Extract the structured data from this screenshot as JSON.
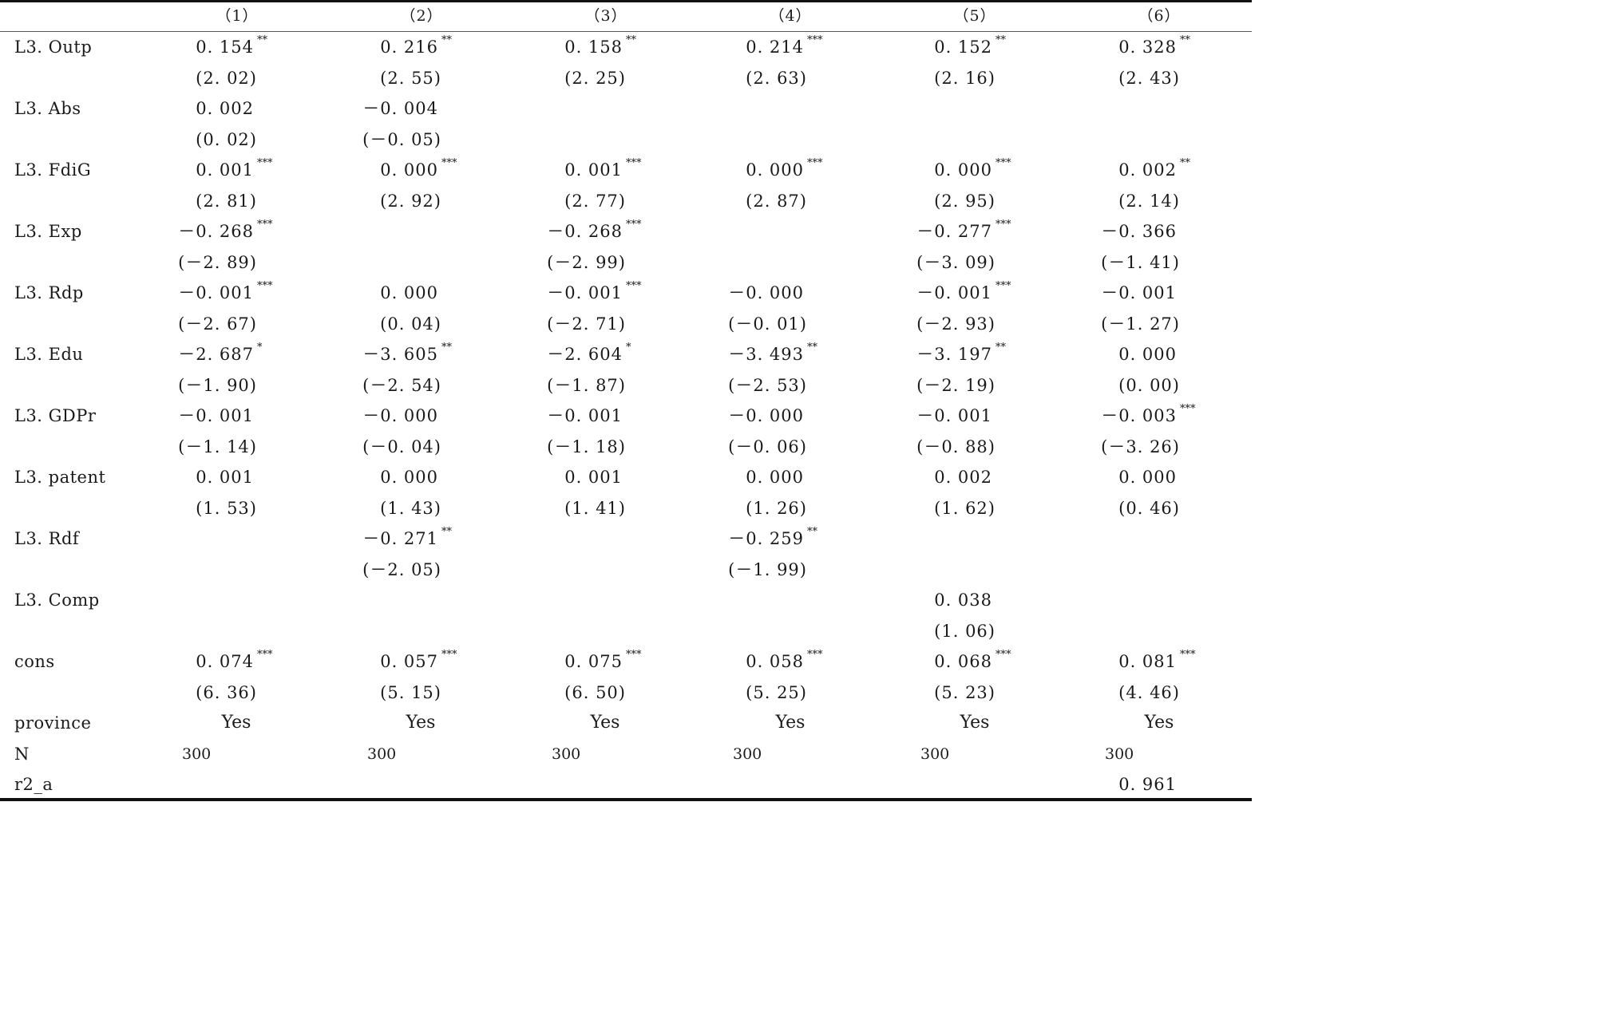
{
  "columns": [
    "（1）",
    "（2）",
    "（3）",
    "（4）",
    "（5）",
    "（6）"
  ],
  "rows": [
    {
      "label": "L3. Outp",
      "coef": [
        [
          "0. 154",
          "**"
        ],
        [
          "0. 216",
          "**"
        ],
        [
          "0. 158",
          "**"
        ],
        [
          "0. 214",
          "***"
        ],
        [
          "0. 152",
          "**"
        ],
        [
          "0. 328",
          "**"
        ]
      ],
      "t": [
        "(2. 02)",
        "(2. 55)",
        "(2. 25)",
        "(2. 63)",
        "(2. 16)",
        "(2. 43)"
      ]
    },
    {
      "label": "L3. Abs",
      "coef": [
        [
          "0. 002",
          ""
        ],
        [
          "－0. 004",
          ""
        ],
        [
          "",
          ""
        ],
        [
          "",
          ""
        ],
        [
          "",
          ""
        ],
        [
          "",
          ""
        ]
      ],
      "t": [
        "(0. 02)",
        "(－0. 05)",
        "",
        "",
        "",
        ""
      ]
    },
    {
      "label": "L3. FdiG",
      "coef": [
        [
          "0. 001",
          "***"
        ],
        [
          "0. 000",
          "***"
        ],
        [
          "0. 001",
          "***"
        ],
        [
          "0. 000",
          "***"
        ],
        [
          "0. 000",
          "***"
        ],
        [
          "0. 002",
          "**"
        ]
      ],
      "t": [
        "(2. 81)",
        "(2. 92)",
        "(2. 77)",
        "(2. 87)",
        "(2. 95)",
        "(2. 14)"
      ]
    },
    {
      "label": "L3. Exp",
      "coef": [
        [
          "－0. 268",
          "***"
        ],
        [
          "",
          ""
        ],
        [
          "－0. 268",
          "***"
        ],
        [
          "",
          ""
        ],
        [
          "－0. 277",
          "***"
        ],
        [
          "－0. 366",
          ""
        ]
      ],
      "t": [
        "(－2. 89)",
        "",
        "(－2. 99)",
        "",
        "(－3. 09)",
        "(－1. 41)"
      ]
    },
    {
      "label": "L3. Rdp",
      "coef": [
        [
          "－0. 001",
          "***"
        ],
        [
          "0. 000",
          ""
        ],
        [
          "－0. 001",
          "***"
        ],
        [
          "－0. 000",
          ""
        ],
        [
          "－0. 001",
          "***"
        ],
        [
          "－0. 001",
          ""
        ]
      ],
      "t": [
        "(－2. 67)",
        "(0. 04)",
        "(－2. 71)",
        "(－0. 01)",
        "(－2. 93)",
        "(－1. 27)"
      ]
    },
    {
      "label": "L3. Edu",
      "coef": [
        [
          "－2. 687",
          "*"
        ],
        [
          "－3. 605",
          "**"
        ],
        [
          "－2. 604",
          "*"
        ],
        [
          "－3. 493",
          "**"
        ],
        [
          "－3. 197",
          "**"
        ],
        [
          "0. 000",
          ""
        ]
      ],
      "t": [
        "(－1. 90)",
        "(－2. 54)",
        "(－1. 87)",
        "(－2. 53)",
        "(－2. 19)",
        "(0. 00)"
      ]
    },
    {
      "label": "L3. GDPr",
      "coef": [
        [
          "－0. 001",
          ""
        ],
        [
          "－0. 000",
          ""
        ],
        [
          "－0. 001",
          ""
        ],
        [
          "－0. 000",
          ""
        ],
        [
          "－0. 001",
          ""
        ],
        [
          "－0. 003",
          "***"
        ]
      ],
      "t": [
        "(－1. 14)",
        "(－0. 04)",
        "(－1. 18)",
        "(－0. 06)",
        "(－0. 88)",
        "(－3. 26)"
      ]
    },
    {
      "label": "L3. patent",
      "coef": [
        [
          "0. 001",
          ""
        ],
        [
          "0. 000",
          ""
        ],
        [
          "0. 001",
          ""
        ],
        [
          "0. 000",
          ""
        ],
        [
          "0. 002",
          ""
        ],
        [
          "0. 000",
          ""
        ]
      ],
      "t": [
        "(1. 53)",
        "(1. 43)",
        "(1. 41)",
        "(1. 26)",
        "(1. 62)",
        "(0. 46)"
      ]
    },
    {
      "label": "L3. Rdf",
      "coef": [
        [
          "",
          ""
        ],
        [
          "－0. 271",
          "**"
        ],
        [
          "",
          ""
        ],
        [
          "－0. 259",
          "**"
        ],
        [
          "",
          ""
        ],
        [
          "",
          ""
        ]
      ],
      "t": [
        "",
        "(－2. 05)",
        "",
        "(－1. 99)",
        "",
        ""
      ]
    },
    {
      "label": "L3. Comp",
      "coef": [
        [
          "",
          ""
        ],
        [
          "",
          ""
        ],
        [
          "",
          ""
        ],
        [
          "",
          ""
        ],
        [
          "0. 038",
          ""
        ],
        [
          "",
          ""
        ]
      ],
      "t": [
        "",
        "",
        "",
        "",
        "(1. 06)",
        ""
      ]
    },
    {
      "label": "cons",
      "coef": [
        [
          "0. 074",
          "***"
        ],
        [
          "0. 057",
          "***"
        ],
        [
          "0. 075",
          "***"
        ],
        [
          "0. 058",
          "***"
        ],
        [
          "0. 068",
          "***"
        ],
        [
          "0. 081",
          "***"
        ]
      ],
      "t": [
        "(6. 36)",
        "(5. 15)",
        "(6. 50)",
        "(5. 25)",
        "(5. 23)",
        "(4. 46)"
      ]
    }
  ],
  "province": {
    "label": "province",
    "values": [
      "Yes",
      "Yes",
      "Yes",
      "Yes",
      "Yes",
      "Yes"
    ]
  },
  "n": {
    "label": "N",
    "values": [
      "300",
      "300",
      "300",
      "300",
      "300",
      "300"
    ]
  },
  "r2": {
    "label": "r2_a",
    "values": [
      "",
      "",
      "",
      "",
      "",
      "0. 961"
    ]
  }
}
